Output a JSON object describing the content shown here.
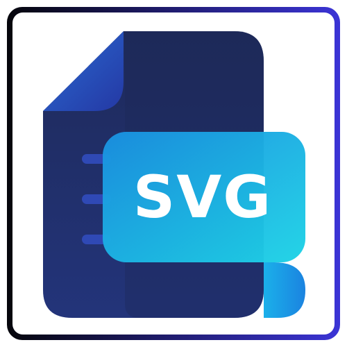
{
  "file_icon": {
    "badge_text": "SVG",
    "colors": {
      "frame_gradient_start": "#05050b",
      "frame_gradient_end": "#3b34d6",
      "document_body": "#1f2b5e",
      "document_fold": "#2f5cc0",
      "document_lines": "#2f49b5",
      "badge_gradient_start": "#1a8fe0",
      "badge_gradient_end": "#1ed3e6",
      "badge_text": "#ffffff"
    }
  }
}
